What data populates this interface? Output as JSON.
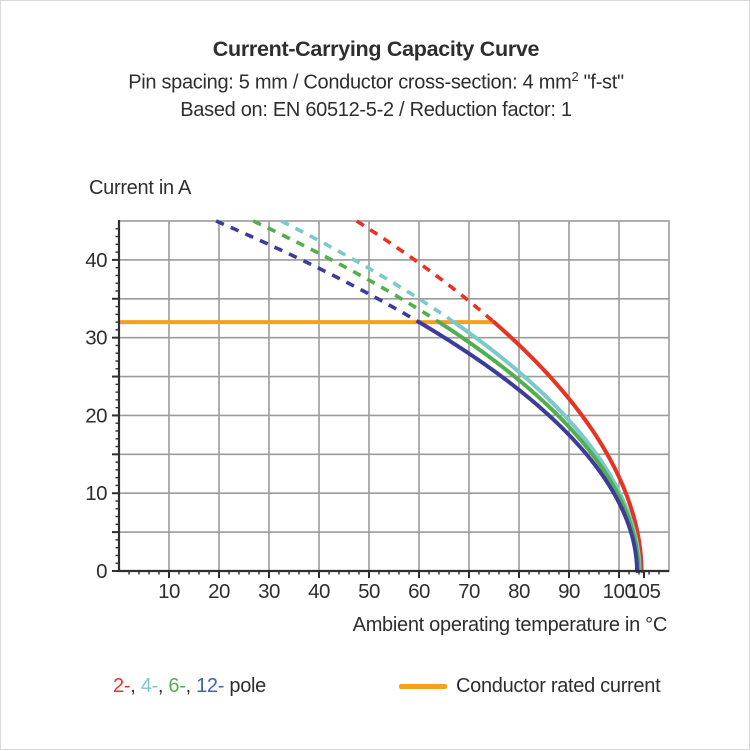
{
  "header": {
    "title": "Current-Carrying Capacity Curve",
    "subtitle1_prefix": "Pin spacing: 5 mm / Conductor cross-section: 4 mm",
    "subtitle1_sup": "2",
    "subtitle1_suffix": " \"f-st\"",
    "subtitle2": "Based on: EN 60512-5-2 / Reduction factor: 1"
  },
  "chart_data": {
    "type": "line",
    "title": "Current-Carrying Capacity Curve",
    "xlabel": "Ambient operating temperature in °C",
    "ylabel": "Current in A",
    "xlim": [
      0,
      110
    ],
    "ylim": [
      0,
      45
    ],
    "x_grid_step": 10,
    "y_grid_step": 5,
    "x_minor_tick_step": 2,
    "y_minor_tick_step": 1,
    "x_tick_labels": [
      10,
      20,
      30,
      40,
      50,
      60,
      70,
      80,
      90,
      100,
      105
    ],
    "y_tick_labels": [
      0,
      10,
      20,
      30,
      40
    ],
    "grid_color": "#9b9b9b",
    "axis_color": "#2f2f2f",
    "rated_current": {
      "label": "Conductor rated current",
      "value_A": 32,
      "from_C": 0,
      "to_C": 75,
      "color": "#F6A01E"
    },
    "curve_model": {
      "formula": "T(I) = zero_C - (zero_C - rated_crossing_C) * (I / 32)^exponent",
      "exponent": 1.93,
      "dashed_above_A": 32,
      "clip_top_A": 45
    },
    "series": [
      {
        "name": "2-pole",
        "legend_label": "2-",
        "color": "#E63322",
        "legend_color": "#E63322",
        "rated_crossing_C": 75,
        "zero_current_C": 104.5,
        "points_T_A": [
          [
            47.5,
            45
          ],
          [
            59.1,
            40
          ],
          [
            69.4,
            35
          ],
          [
            75,
            32
          ],
          [
            78.5,
            30
          ],
          [
            86.2,
            25
          ],
          [
            92.6,
            20
          ],
          [
            97.7,
            15
          ],
          [
            101.4,
            10
          ],
          [
            103.7,
            5
          ],
          [
            104.5,
            0
          ]
        ]
      },
      {
        "name": "4-pole",
        "legend_label": "4-",
        "color": "#79C9CD",
        "legend_color": "#79C9CD",
        "rated_crossing_C": 67,
        "zero_current_C": 104.1,
        "points_T_A": [
          [
            32.4,
            45
          ],
          [
            47.0,
            40
          ],
          [
            60.0,
            35
          ],
          [
            67,
            32
          ],
          [
            71.3,
            30
          ],
          [
            81.1,
            25
          ],
          [
            89.1,
            20
          ],
          [
            95.5,
            15
          ],
          [
            100.2,
            10
          ],
          [
            103.1,
            5
          ],
          [
            104.1,
            0
          ]
        ]
      },
      {
        "name": "6-pole",
        "legend_label": "6-",
        "color": "#55AE4E",
        "legend_color": "#55AE4E",
        "rated_crossing_C": 64,
        "zero_current_C": 103.9,
        "points_T_A": [
          [
            26.8,
            45
          ],
          [
            42.5,
            40
          ],
          [
            56.5,
            35
          ],
          [
            64,
            32
          ],
          [
            68.7,
            30
          ],
          [
            79.1,
            25
          ],
          [
            87.8,
            20
          ],
          [
            94.7,
            15
          ],
          [
            99.7,
            10
          ],
          [
            102.8,
            5
          ],
          [
            103.9,
            0
          ]
        ]
      },
      {
        "name": "12-pole",
        "legend_label": "12-",
        "color": "#3B3D99",
        "legend_color": "#3C64B8",
        "rated_crossing_C": 60,
        "zero_current_C": 103.6,
        "points_T_A": [
          [
            19.4,
            45
          ],
          [
            36.5,
            40
          ],
          [
            51.8,
            35
          ],
          [
            60,
            32
          ],
          [
            65.1,
            30
          ],
          [
            76.5,
            25
          ],
          [
            86.0,
            20
          ],
          [
            93.5,
            15
          ],
          [
            99.0,
            10
          ],
          [
            102.4,
            5
          ],
          [
            103.6,
            0
          ]
        ]
      }
    ],
    "legend_position": "bottom"
  },
  "legend": {
    "separator": ", ",
    "suffix": " pole",
    "rated_label": "Conductor rated current"
  }
}
